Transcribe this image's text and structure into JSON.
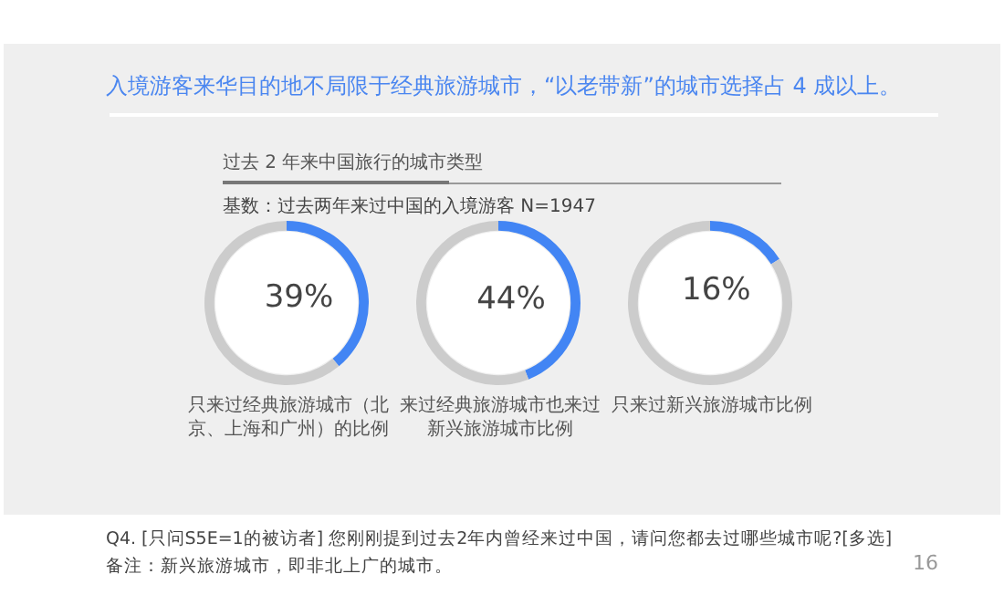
{
  "chart_data": [
    {
      "type": "donut",
      "title": "入境游客来华目的地不局限于经典旅游城市，“以老带新”的城市选择占 4 成以上。",
      "subtitle": "过去 2 年来中国旅行的城市类型",
      "annotations": [
        "基数：过去两年来过中国的入境游客 N=1947",
        "Q4. [只问S5E=1的被访者] 您刚刚提到过去2年内曾经来过中国，请问您都去过哪些城市呢?[多选]",
        "备注：新兴旅游城市，即非北上广的城市。",
        "16"
      ],
      "xlabel": "只来过经典旅游城市（北京、上海和广州）的比例",
      "categories": [
        null,
        null
      ],
      "values": [
        39,
        61
      ],
      "colors": [
        "#4285f4",
        "#cccccc"
      ],
      "value_labels": [
        "39%",
        null
      ]
    },
    {
      "type": "donut",
      "xlabel": "来过经典旅游城市也来过新兴旅游城市比例",
      "categories": [
        null,
        null
      ],
      "values": [
        44,
        56
      ],
      "colors": [
        "#4285f4",
        "#cccccc"
      ],
      "value_labels": [
        "44%",
        null
      ]
    },
    {
      "type": "donut",
      "xlabel": "只来过新兴旅游城市比例",
      "categories": [
        null,
        null
      ],
      "values": [
        16,
        84
      ],
      "colors": [
        "#4285f4",
        "#cccccc"
      ],
      "value_labels": [
        "16%",
        null
      ]
    }
  ]
}
